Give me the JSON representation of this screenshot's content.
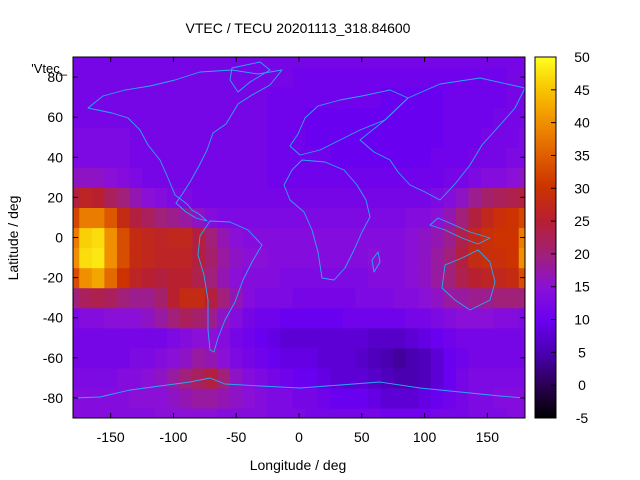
{
  "chart_data": {
    "type": "heatmap",
    "title": "VTEC / TECU 20201113_318.84600",
    "xlabel": "Longitude / deg",
    "ylabel": "Latitude / deg",
    "key_label": "'Vtec_",
    "xlim": [
      -180,
      180
    ],
    "ylim": [
      -90,
      90
    ],
    "x_ticks": [
      -150,
      -100,
      -50,
      0,
      50,
      100,
      150
    ],
    "y_ticks": [
      -80,
      -60,
      -40,
      -20,
      0,
      20,
      40,
      60,
      80
    ],
    "colorbar": {
      "range": [
        -5,
        50
      ],
      "ticks": [
        -5,
        0,
        5,
        10,
        15,
        20,
        25,
        30,
        35,
        40,
        45,
        50
      ],
      "palette": "black-purple-red-orange-yellow"
    },
    "grid": false,
    "lon": [
      -180,
      -170,
      -160,
      -150,
      -140,
      -130,
      -120,
      -110,
      -100,
      -90,
      -80,
      -70,
      -60,
      -50,
      -40,
      -30,
      -20,
      -10,
      0,
      10,
      20,
      30,
      40,
      50,
      60,
      70,
      80,
      90,
      100,
      110,
      120,
      130,
      140,
      150,
      160,
      170,
      180
    ],
    "lat": [
      -90,
      -80,
      -70,
      -60,
      -50,
      -40,
      -30,
      -20,
      -10,
      0,
      10,
      20,
      30,
      40,
      50,
      60,
      70,
      80,
      90
    ],
    "vtec_rows_by_lat": [
      [
        14,
        14,
        14,
        14,
        14,
        14,
        14,
        15,
        15,
        15,
        15,
        15,
        14,
        14,
        14,
        14,
        13,
        13,
        13,
        12,
        12,
        12,
        12,
        12,
        12,
        11,
        11,
        11,
        11,
        12,
        12,
        12,
        13,
        13,
        13,
        14,
        14
      ],
      [
        14,
        14,
        14,
        14,
        14,
        15,
        15,
        15,
        16,
        17,
        18,
        18,
        17,
        16,
        15,
        14,
        13,
        13,
        12,
        12,
        11,
        10,
        10,
        10,
        9,
        8,
        8,
        8,
        9,
        10,
        11,
        12,
        13,
        13,
        14,
        14,
        14
      ],
      [
        13,
        13,
        13,
        13,
        14,
        14,
        15,
        16,
        18,
        20,
        22,
        24,
        20,
        16,
        14,
        13,
        12,
        11,
        10,
        10,
        9,
        8,
        8,
        8,
        7,
        6,
        5,
        5,
        6,
        8,
        10,
        12,
        13,
        13,
        13,
        13,
        13
      ],
      [
        12,
        12,
        12,
        12,
        12,
        13,
        13,
        14,
        15,
        16,
        18,
        17,
        15,
        13,
        12,
        11,
        10,
        9,
        9,
        9,
        8,
        8,
        8,
        7,
        6,
        5,
        4,
        5,
        6,
        8,
        10,
        11,
        12,
        12,
        12,
        12,
        12
      ],
      [
        12,
        12,
        12,
        12,
        12,
        12,
        12,
        12,
        13,
        14,
        15,
        15,
        14,
        12,
        11,
        10,
        9,
        8,
        8,
        8,
        8,
        8,
        8,
        8,
        7,
        7,
        7,
        8,
        9,
        10,
        11,
        12,
        12,
        12,
        12,
        12,
        12
      ],
      [
        13,
        14,
        14,
        15,
        15,
        15,
        16,
        18,
        20,
        22,
        21,
        19,
        16,
        14,
        12,
        11,
        11,
        10,
        10,
        10,
        10,
        10,
        11,
        11,
        11,
        11,
        11,
        12,
        12,
        13,
        14,
        15,
        15,
        15,
        14,
        14,
        13
      ],
      [
        20,
        22,
        23,
        22,
        20,
        19,
        19,
        21,
        25,
        28,
        28,
        24,
        20,
        17,
        14,
        13,
        13,
        13,
        12,
        12,
        12,
        12,
        12,
        13,
        13,
        13,
        14,
        14,
        15,
        16,
        18,
        18,
        19,
        19,
        20,
        20,
        20
      ],
      [
        33,
        40,
        42,
        36,
        30,
        26,
        25,
        24,
        25,
        25,
        23,
        20,
        17,
        15,
        14,
        14,
        14,
        13,
        13,
        13,
        13,
        13,
        13,
        13,
        14,
        14,
        14,
        15,
        16,
        18,
        20,
        23,
        25,
        26,
        27,
        28,
        33
      ],
      [
        40,
        47,
        48,
        40,
        33,
        28,
        27,
        26,
        26,
        26,
        24,
        21,
        18,
        16,
        15,
        15,
        14,
        14,
        14,
        14,
        14,
        14,
        14,
        14,
        15,
        14,
        14,
        15,
        16,
        18,
        20,
        24,
        28,
        29,
        29,
        30,
        40
      ],
      [
        38,
        46,
        47,
        40,
        33,
        28,
        27,
        26,
        27,
        27,
        24,
        20,
        17,
        15,
        14,
        14,
        14,
        14,
        14,
        14,
        14,
        14,
        14,
        14,
        14,
        14,
        14,
        15,
        16,
        17,
        19,
        23,
        27,
        29,
        30,
        30,
        38
      ],
      [
        32,
        38,
        38,
        34,
        28,
        24,
        22,
        20,
        19,
        18,
        16,
        14,
        13,
        13,
        13,
        13,
        13,
        13,
        13,
        13,
        13,
        13,
        13,
        13,
        13,
        13,
        13,
        14,
        14,
        15,
        17,
        20,
        24,
        27,
        29,
        30,
        32
      ],
      [
        24,
        26,
        25,
        22,
        20,
        17,
        15,
        14,
        13,
        13,
        12,
        12,
        12,
        12,
        12,
        12,
        12,
        12,
        12,
        12,
        12,
        12,
        12,
        12,
        12,
        12,
        12,
        12,
        12,
        13,
        14,
        16,
        19,
        21,
        22,
        23,
        24
      ],
      [
        16,
        16,
        16,
        15,
        14,
        13,
        12,
        12,
        12,
        12,
        12,
        12,
        12,
        12,
        12,
        12,
        11,
        11,
        11,
        11,
        11,
        11,
        11,
        11,
        11,
        11,
        11,
        11,
        11,
        11,
        12,
        12,
        13,
        14,
        14,
        15,
        16
      ],
      [
        13,
        13,
        13,
        13,
        13,
        12,
        12,
        12,
        12,
        12,
        12,
        12,
        12,
        12,
        12,
        12,
        11,
        11,
        11,
        11,
        11,
        10,
        10,
        10,
        10,
        10,
        10,
        10,
        10,
        11,
        11,
        11,
        12,
        12,
        12,
        13,
        13
      ],
      [
        13,
        13,
        13,
        13,
        13,
        12,
        12,
        12,
        12,
        12,
        12,
        12,
        12,
        12,
        12,
        12,
        11,
        11,
        11,
        10,
        10,
        10,
        10,
        10,
        10,
        10,
        10,
        10,
        10,
        10,
        11,
        11,
        11,
        12,
        12,
        12,
        13
      ],
      [
        12,
        12,
        12,
        12,
        12,
        12,
        12,
        12,
        12,
        12,
        12,
        12,
        12,
        12,
        12,
        12,
        11,
        11,
        11,
        10,
        10,
        10,
        10,
        10,
        10,
        10,
        10,
        10,
        10,
        10,
        11,
        11,
        11,
        11,
        12,
        12,
        12
      ],
      [
        12,
        12,
        12,
        12,
        12,
        12,
        12,
        12,
        12,
        12,
        12,
        12,
        12,
        12,
        12,
        12,
        11,
        11,
        11,
        11,
        11,
        11,
        11,
        11,
        11,
        10,
        10,
        10,
        10,
        10,
        11,
        11,
        11,
        11,
        11,
        12,
        12
      ],
      [
        12,
        12,
        12,
        12,
        12,
        12,
        12,
        12,
        12,
        12,
        12,
        12,
        12,
        12,
        12,
        12,
        12,
        12,
        11,
        11,
        11,
        11,
        11,
        11,
        11,
        11,
        11,
        11,
        11,
        11,
        11,
        11,
        11,
        11,
        11,
        12,
        12
      ],
      [
        12,
        12,
        12,
        12,
        12,
        12,
        12,
        12,
        12,
        12,
        12,
        12,
        12,
        12,
        12,
        12,
        12,
        12,
        12,
        12,
        12,
        12,
        12,
        12,
        12,
        12,
        12,
        12,
        12,
        12,
        12,
        12,
        12,
        12,
        12,
        12,
        12
      ]
    ]
  }
}
